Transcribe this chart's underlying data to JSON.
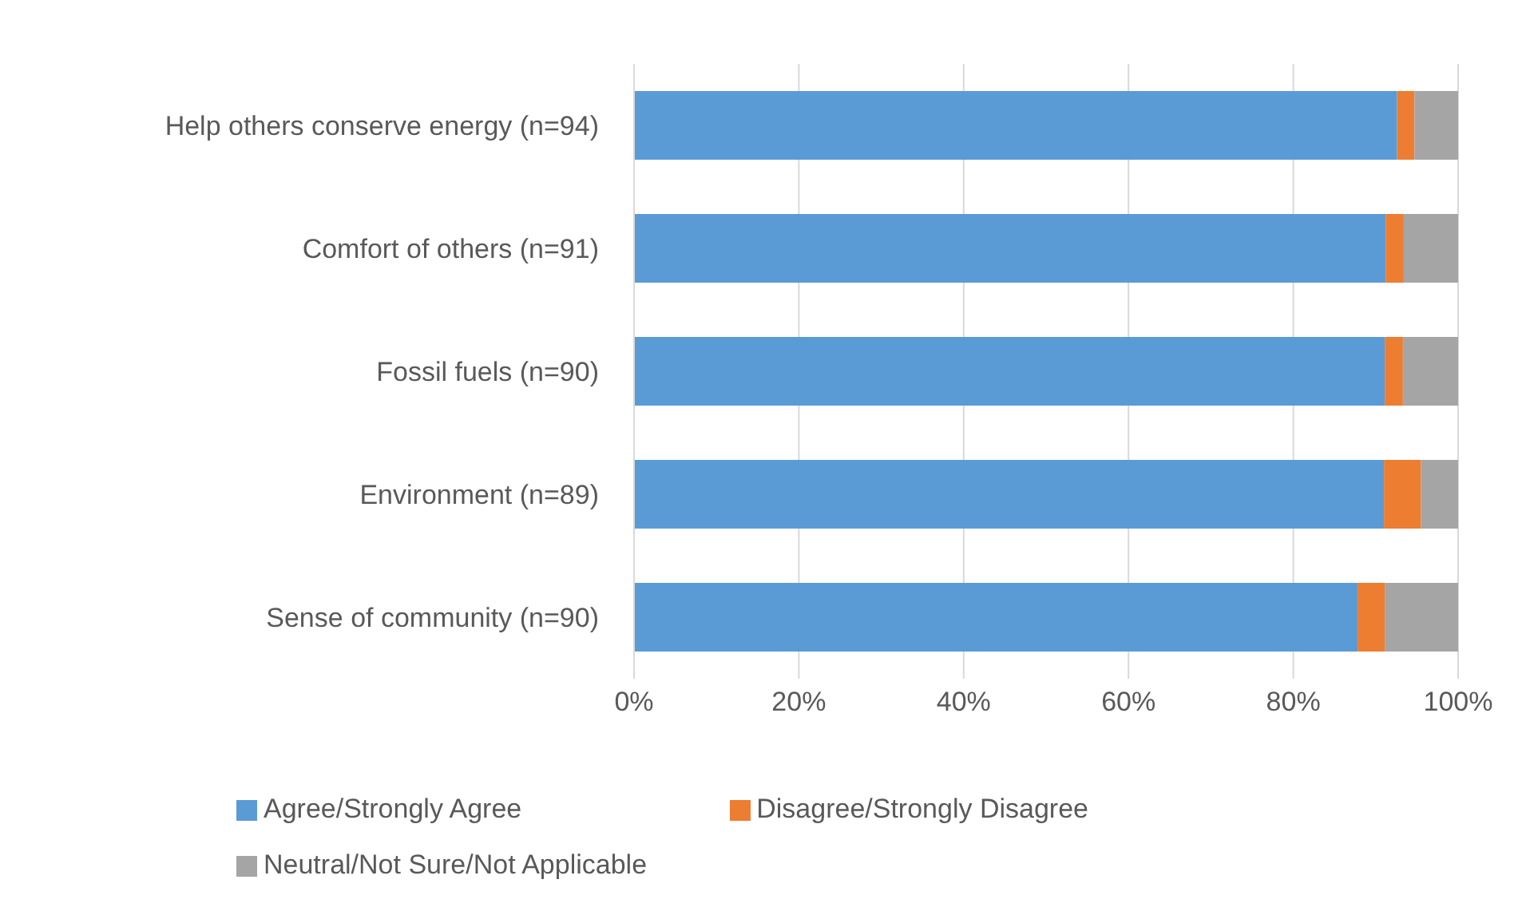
{
  "chart_data": {
    "type": "bar",
    "orientation": "horizontal",
    "stacked": true,
    "categories": [
      "Help others conserve energy (n=94)",
      "Comfort of others (n=91)",
      "Fossil fuels (n=90)",
      "Environment (n=89)",
      "Sense of community (n=90)"
    ],
    "series": [
      {
        "name": "Agree/Strongly Agree",
        "color": "#5b9bd5",
        "values": [
          92.6,
          91.2,
          91.1,
          91.0,
          87.8
        ]
      },
      {
        "name": "Disagree/Strongly Disagree",
        "color": "#ed7d31",
        "values": [
          2.1,
          2.2,
          2.2,
          4.5,
          3.3
        ]
      },
      {
        "name": "Neutral/Not Sure/Not Applicable",
        "color": "#a5a5a5",
        "values": [
          5.3,
          6.6,
          6.7,
          4.5,
          8.9
        ]
      }
    ],
    "xlim": [
      0,
      100
    ],
    "xticks": [
      {
        "value": 0,
        "label": "0%"
      },
      {
        "value": 20,
        "label": "20%"
      },
      {
        "value": 40,
        "label": "40%"
      },
      {
        "value": 60,
        "label": "60%"
      },
      {
        "value": 80,
        "label": "80%"
      },
      {
        "value": 100,
        "label": "100%"
      }
    ],
    "grid": "x",
    "legend": "bottom"
  }
}
